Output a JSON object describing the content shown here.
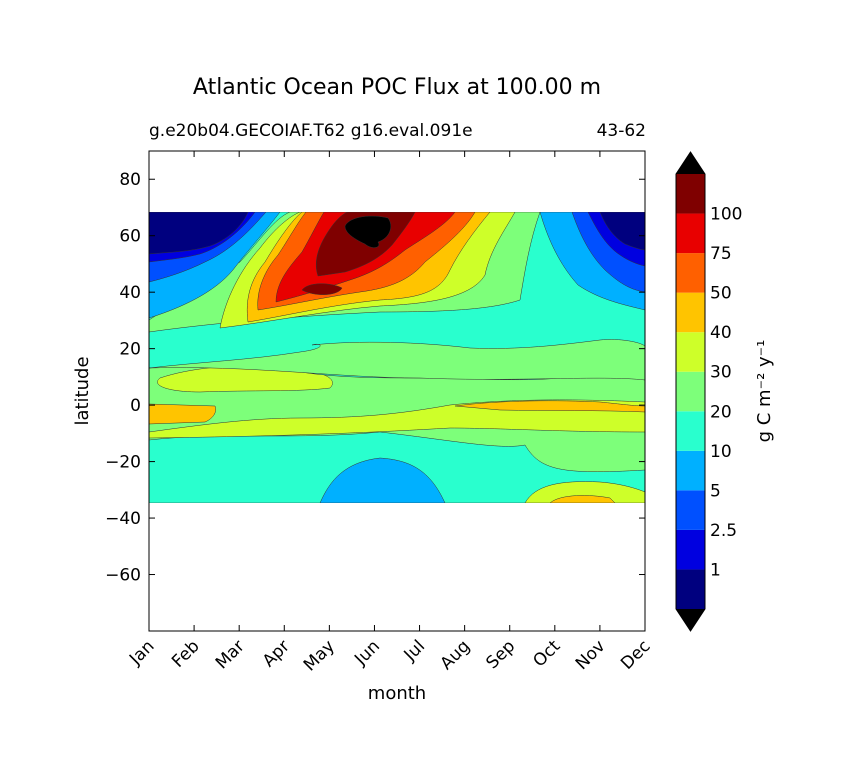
{
  "chart_data": {
    "type": "heatmap",
    "title": "Atlantic Ocean POC Flux at 100.00 m",
    "subtitle_left": "g.e20b04.GECOIAF.T62 g16.eval.091e",
    "subtitle_right": "43-62",
    "xlabel": "month",
    "ylabel": "latitude",
    "x_categories": [
      "Jan",
      "Feb",
      "Mar",
      "Apr",
      "May",
      "Jun",
      "Jul",
      "Aug",
      "Sep",
      "Oct",
      "Nov",
      "Dec"
    ],
    "y_ticks": [
      80,
      60,
      40,
      20,
      0,
      -20,
      -40,
      -60
    ],
    "ylim": [
      -80,
      90
    ],
    "data_lat_range": [
      -34,
      69
    ],
    "colorbar": {
      "label": "g C m⁻² y⁻¹",
      "levels": [
        "1",
        "2.5",
        "5",
        "10",
        "20",
        "30",
        "40",
        "50",
        "75",
        "100"
      ],
      "colors": [
        "#00007f",
        "#0000e0",
        "#0050ff",
        "#00b0ff",
        "#29ffce",
        "#7dff7a",
        "#ceff29",
        "#ffc400",
        "#ff6000",
        "#e80000",
        "#7f0000"
      ],
      "extend": "both",
      "extend_min_color": "#000000",
      "extend_max_color": "#000000"
    },
    "features": [
      {
        "label": "max",
        "month": "Jun",
        "lat": 62,
        "value": ">100"
      },
      {
        "label": "min",
        "month": "Jan",
        "lat": 62,
        "value": "<1"
      }
    ]
  }
}
